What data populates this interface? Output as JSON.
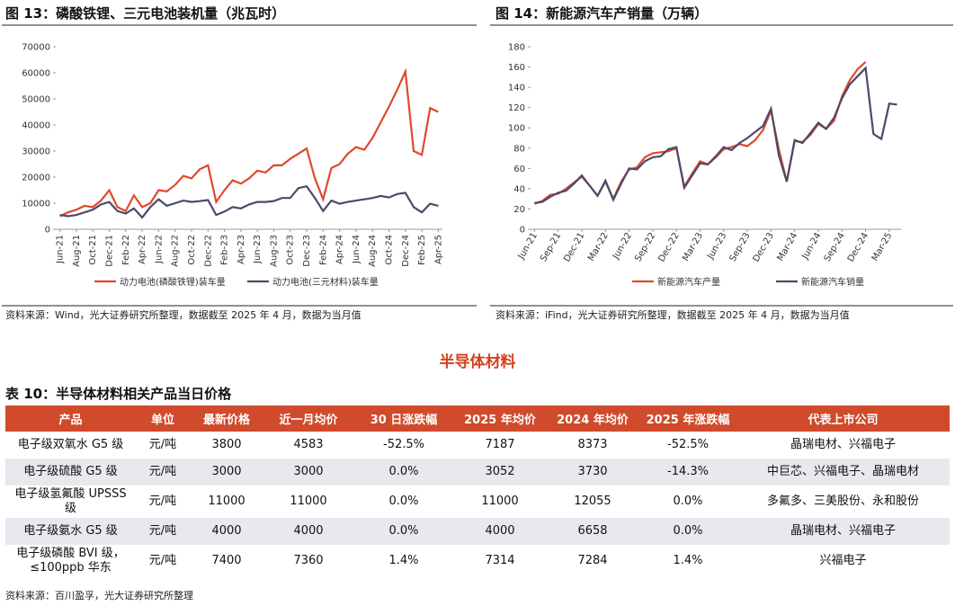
{
  "chart_data": [
    {
      "type": "line",
      "title": "图 13：磷酸铁锂、三元电池装机量（兆瓦时）",
      "categories": [
        "Jun-21",
        null,
        "Aug-21",
        null,
        "Oct-21",
        null,
        "Dec-21",
        null,
        "Feb-22",
        null,
        "Apr-22",
        null,
        "Jun-22",
        null,
        "Aug-22",
        null,
        "Oct-22",
        null,
        "Dec-22",
        null,
        "Feb-23",
        null,
        "Apr-23",
        null,
        "Jun-23",
        null,
        "Aug-23",
        null,
        "Oct-23",
        null,
        "Dec-23",
        null,
        "Feb-24",
        null,
        "Apr-24",
        null,
        "Jun-24",
        null,
        "Aug-24",
        null,
        "Oct-24",
        null,
        "Dec-24",
        null,
        "Feb-25",
        null,
        "Apr-25"
      ],
      "series": [
        {
          "name": "动力电池(磷酸铁锂)装车量",
          "color": "#e0492b",
          "values": [
            5000,
            6500,
            7500,
            9000,
            8500,
            11000,
            15000,
            8500,
            7000,
            13000,
            8500,
            10000,
            15000,
            14500,
            17000,
            20500,
            19500,
            23000,
            24500,
            10500,
            15000,
            18800,
            17500,
            19500,
            22500,
            21800,
            24500,
            24500,
            27000,
            29000,
            31000,
            19500,
            11500,
            23500,
            25000,
            29000,
            31500,
            30500,
            35000,
            41000,
            47000,
            53500,
            60500,
            30000,
            28500,
            46500,
            45000
          ]
        },
        {
          "name": "动力电池(三元材料)装车量",
          "color": "#4b4a6b",
          "values": [
            5500,
            5000,
            5500,
            6500,
            7500,
            9500,
            10500,
            7000,
            6000,
            8000,
            4500,
            8500,
            11500,
            9000,
            10000,
            11000,
            10500,
            10800,
            11200,
            5500,
            6800,
            8500,
            8000,
            9500,
            10500,
            10500,
            10800,
            12000,
            12000,
            15800,
            16500,
            12000,
            7000,
            11000,
            9800,
            10500,
            11000,
            11500,
            12000,
            12800,
            12200,
            13500,
            14000,
            8500,
            6500,
            9800,
            9000
          ]
        }
      ],
      "ylim": [
        0,
        70000
      ],
      "yticks": [
        0,
        10000,
        20000,
        30000,
        40000,
        50000,
        60000,
        70000
      ],
      "source": "资料来源：Wind，光大证券研究所整理，数据截至 2025 年 4 月，数据为当月值"
    },
    {
      "type": "line",
      "title": "图 14：新能源汽车产销量（万辆）",
      "categories": [
        "Jun-21",
        null,
        null,
        "Sep-21",
        null,
        null,
        "Dec-21",
        null,
        null,
        "Mar-22",
        null,
        null,
        "Jun-22",
        null,
        null,
        "Sep-22",
        null,
        null,
        "Dec-22",
        null,
        null,
        "Mar-23",
        null,
        null,
        "Jun-23",
        null,
        null,
        "Sep-23",
        null,
        null,
        "Dec-23",
        null,
        null,
        "Mar-24",
        null,
        null,
        "Jun-24",
        null,
        null,
        "Sep-24",
        null,
        null,
        "Dec-24",
        null,
        null,
        "Mar-25",
        null
      ],
      "series": [
        {
          "name": "新能源汽车产量",
          "color": "#e0492b",
          "values": [
            25,
            28,
            34,
            35,
            40,
            46,
            52,
            43,
            33,
            47,
            30,
            47,
            59,
            61,
            71,
            75,
            76,
            77,
            80,
            42,
            55,
            67,
            64,
            71,
            79,
            81,
            84,
            82,
            88,
            98,
            117,
            79,
            47,
            87,
            86,
            93,
            104,
            99,
            107,
            131,
            147,
            158,
            165,
            null,
            null,
            null,
            null
          ]
        },
        {
          "name": "新能源汽车销量",
          "color": "#4b4a6b",
          "values": [
            26,
            27,
            32,
            36,
            38,
            45,
            53,
            43,
            33,
            48,
            29,
            45,
            60,
            59,
            67,
            71,
            72,
            79,
            81,
            41,
            53,
            65,
            64,
            72,
            81,
            78,
            85,
            90,
            96,
            102,
            119,
            73,
            47,
            88,
            85,
            95,
            105,
            99,
            110,
            129,
            143,
            151,
            159,
            94,
            89,
            124,
            123
          ]
        }
      ],
      "ylim": [
        0,
        180
      ],
      "yticks": [
        0,
        20,
        40,
        60,
        80,
        100,
        120,
        140,
        160,
        180
      ],
      "source": "资料来源：iFind，光大证券研究所整理，数据截至 2025 年 4 月，数据为当月值"
    }
  ],
  "section_title": "半导体材料",
  "table": {
    "title": "表 10：半导体材料相关产品当日价格",
    "header": [
      "产品",
      "单位",
      "最新价格",
      "近一月均价",
      "30 日涨跌幅",
      "2025 年均价",
      "2024 年均价",
      "2025 年涨跌幅",
      "代表上市公司"
    ],
    "rows": [
      [
        "电子级双氧水 G5 级",
        "元/吨",
        "3800",
        "4583",
        "-52.5%",
        "7187",
        "8373",
        "-52.5%",
        "晶瑞电材、兴福电子"
      ],
      [
        "电子级硫酸 G5 级",
        "元/吨",
        "3000",
        "3000",
        "0.0%",
        "3052",
        "3730",
        "-14.3%",
        "中巨芯、兴福电子、晶瑞电材"
      ],
      [
        "电子级氢氟酸 UPSSS 级",
        "元/吨",
        "11000",
        "11000",
        "0.0%",
        "11000",
        "12055",
        "0.0%",
        "多氟多、三美股份、永和股份"
      ],
      [
        "电子级氨水 G5 级",
        "元/吨",
        "4000",
        "4000",
        "0.0%",
        "4000",
        "6658",
        "0.0%",
        "晶瑞电材、兴福电子"
      ],
      [
        "电子级磷酸 BVI 级，≤100ppb 华东",
        "元/吨",
        "7400",
        "7360",
        "1.4%",
        "7314",
        "7284",
        "1.4%",
        "兴福电子"
      ]
    ],
    "source": "资料来源：百川盈孚，光大证券研究所整理"
  }
}
